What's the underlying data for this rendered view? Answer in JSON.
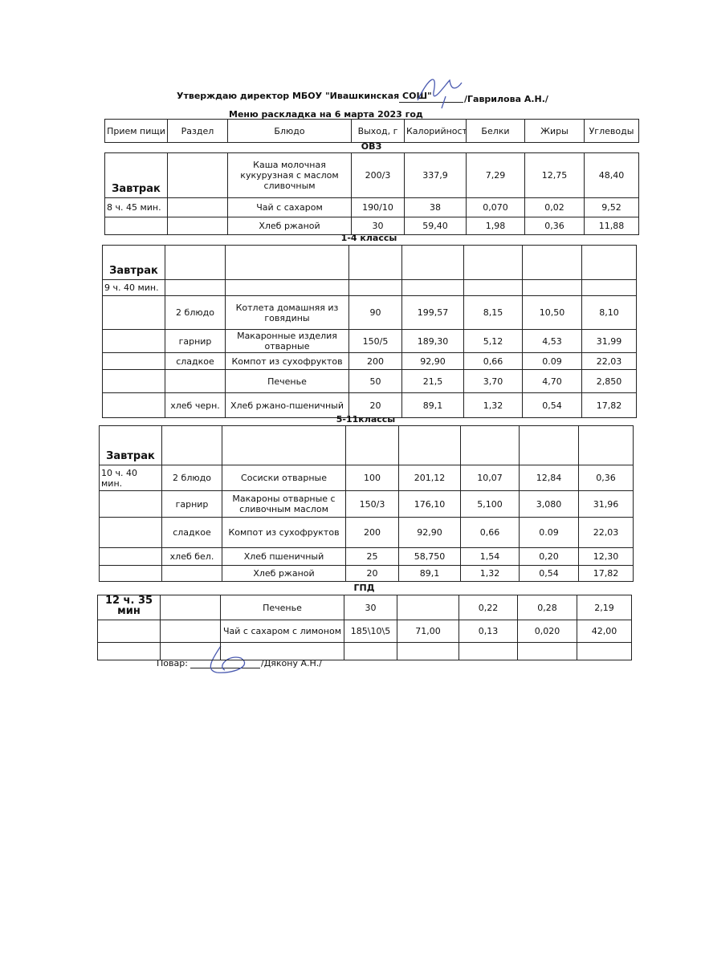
{
  "header": {
    "approval": "Утверждаю директор МБОУ \"Ивашкинская СОШ\"",
    "signer": "/Гаврилова А.Н./",
    "title": "Меню раскладка на 6 марта 2023 год"
  },
  "table": {
    "columns": [
      "Прием пищи",
      "Раздел",
      "Блюдо",
      "Выход, г",
      "Калорийность",
      "Белки",
      "Жиры",
      "Углеводы"
    ],
    "sections": [
      {
        "title": "ОВЗ",
        "rows": [
          [
            "Завтрак",
            null,
            "Каша молочная кукурузная с маслом сливочным",
            "200/3",
            "337,9",
            "7,29",
            "12,75",
            "48,40"
          ],
          [
            "8 ч. 45 мин.",
            null,
            "Чай с сахаром",
            "190/10",
            "38",
            "0,070",
            "0,02",
            "9,52"
          ],
          [
            null,
            null,
            "Хлеб ржаной",
            "30",
            "59,40",
            "1,98",
            "0,36",
            "11,88"
          ]
        ]
      },
      {
        "title": "1-4 классы",
        "rows": [
          [
            "Завтрак",
            null,
            null,
            null,
            null,
            null,
            null,
            null
          ],
          [
            "9 ч. 40 мин.",
            null,
            null,
            null,
            null,
            null,
            null,
            null
          ],
          [
            null,
            "2 блюдо",
            "Котлета домашняя из говядины",
            "90",
            "199,57",
            "8,15",
            "10,50",
            "8,10"
          ],
          [
            null,
            "гарнир",
            "Макаронные изделия отварные",
            "150/5",
            "189,30",
            "5,12",
            "4,53",
            "31,99"
          ],
          [
            null,
            "сладкое",
            "Компот из сухофруктов",
            "200",
            "92,90",
            "0,66",
            "0.09",
            "22,03"
          ],
          [
            null,
            null,
            "Печенье",
            "50",
            "21,5",
            "3,70",
            "4,70",
            "2,850"
          ],
          [
            null,
            "хлеб черн.",
            "Хлеб ржано-пшеничный",
            "20",
            "89,1",
            "1,32",
            "0,54",
            "17,82"
          ]
        ]
      },
      {
        "title": "5-11классы",
        "rows": [
          [
            "Завтрак",
            null,
            null,
            null,
            null,
            null,
            null,
            null
          ],
          [
            "10 ч. 40 мин.",
            "2 блюдо",
            "Сосиски отварные",
            "100",
            "201,12",
            "10,07",
            "12,84",
            "0,36"
          ],
          [
            null,
            "гарнир",
            "Макароны отварные с сливочным маслом",
            "150/3",
            "176,10",
            "5,100",
            "3,080",
            "31,96"
          ],
          [
            null,
            "сладкое",
            "Компот из сухофруктов",
            "200",
            "92,90",
            "0,66",
            "0.09",
            "22,03"
          ],
          [
            null,
            "хлеб бел.",
            "Хлеб пшеничный",
            "25",
            "58,750",
            "1,54",
            "0,20",
            "12,30"
          ],
          [
            null,
            null,
            "Хлеб ржаной",
            "20",
            "89,1",
            "1,32",
            "0,54",
            "17,82"
          ]
        ]
      },
      {
        "title": "ГПД",
        "rows": [
          [
            "12 ч. 35 мин",
            null,
            "Печенье",
            "30",
            null,
            "0,22",
            "0,28",
            "2,19"
          ],
          [
            null,
            null,
            "Чай с сахаром с лимоном",
            "185\\10\\5",
            "71,00",
            "0,13",
            "0,020",
            "42,00"
          ],
          [
            null,
            null,
            null,
            null,
            null,
            null,
            null,
            null
          ]
        ]
      }
    ]
  },
  "footer": {
    "cook_label": "Повар:",
    "cook": "/Дякону А.Н./"
  }
}
